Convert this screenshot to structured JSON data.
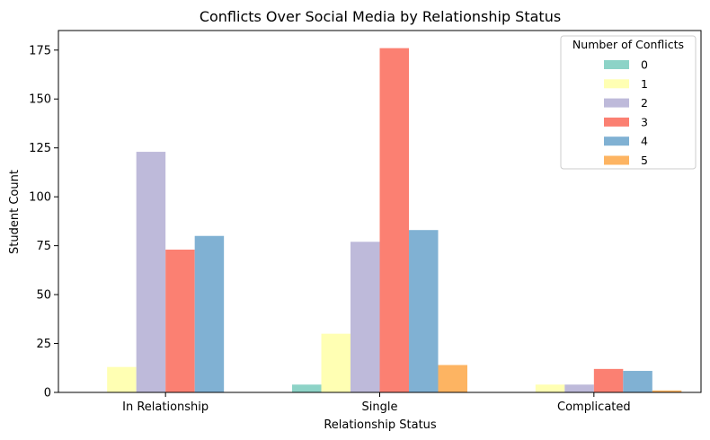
{
  "chart_data": {
    "type": "bar",
    "title": "Conflicts Over Social Media by Relationship Status",
    "xlabel": "Relationship Status",
    "ylabel": "Student Count",
    "categories": [
      "In Relationship",
      "Single",
      "Complicated"
    ],
    "ylim": [
      0,
      185
    ],
    "yticks": [
      "0",
      "25",
      "50",
      "75",
      "100",
      "125",
      "150",
      "175"
    ],
    "grid": false,
    "legend": {
      "title": "Number of Conflicts",
      "placement": "top-right"
    },
    "series": [
      {
        "name": "0",
        "color": "#8dd3c7",
        "values": [
          0,
          4,
          0
        ]
      },
      {
        "name": "1",
        "color": "#ffffb3",
        "values": [
          13,
          30,
          4
        ]
      },
      {
        "name": "2",
        "color": "#bebada",
        "values": [
          123,
          77,
          4
        ]
      },
      {
        "name": "3",
        "color": "#fb8072",
        "values": [
          73,
          176,
          12
        ]
      },
      {
        "name": "4",
        "color": "#80b1d3",
        "values": [
          80,
          83,
          11
        ]
      },
      {
        "name": "5",
        "color": "#fdb462",
        "values": [
          0,
          14,
          1
        ]
      }
    ]
  }
}
